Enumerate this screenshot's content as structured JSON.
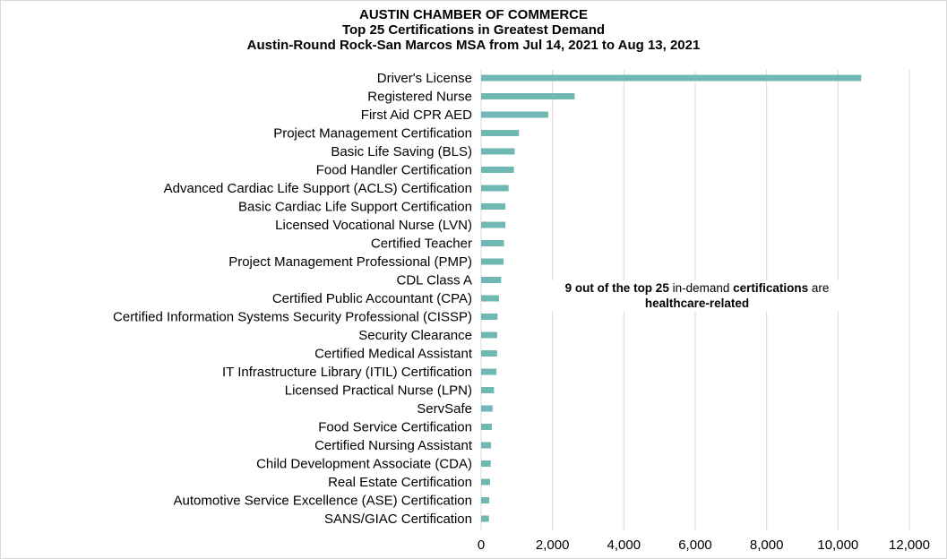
{
  "chart_data": {
    "type": "bar",
    "orientation": "horizontal",
    "title": "AUSTIN CHAMBER OF COMMERCE",
    "subtitle": "Top 25 Certifications in Greatest Demand",
    "subtitle2": "Austin-Round Rock-San Marcos MSA from Jul 14, 2021 to Aug 13, 2021",
    "categories": [
      "Driver's License",
      "Registered Nurse",
      "First Aid CPR AED",
      "Project Management Certification",
      "Basic Life Saving (BLS)",
      "Food Handler Certification",
      "Advanced Cardiac Life Support (ACLS) Certification",
      "Basic Cardiac Life Support Certification",
      "Licensed Vocational Nurse (LVN)",
      "Certified Teacher",
      "Project Management Professional (PMP)",
      "CDL Class A",
      "Certified Public Accountant (CPA)",
      "Certified Information Systems Security Professional (CISSP)",
      "Security Clearance",
      "Certified Medical Assistant",
      "IT Infrastructure Library (ITIL) Certification",
      "Licensed Practical Nurse (LPN)",
      "ServSafe",
      "Food Service Certification",
      "Certified Nursing Assistant",
      "Child Development Associate (CDA)",
      "Real Estate Certification",
      "Automotive Service Excellence (ASE) Certification",
      "SANS/GIAC Certification"
    ],
    "values": [
      10650,
      2620,
      1880,
      1060,
      940,
      920,
      770,
      680,
      680,
      640,
      630,
      560,
      500,
      460,
      450,
      450,
      430,
      360,
      320,
      300,
      280,
      270,
      250,
      230,
      220
    ],
    "xlim": [
      0,
      12000
    ],
    "xticks": [
      0,
      2000,
      4000,
      6000,
      8000,
      10000,
      12000
    ],
    "xtick_labels": [
      "0",
      "2,000",
      "4,000",
      "6,000",
      "8,000",
      "10,000",
      "12,000"
    ],
    "bar_color": "#6fb8b4",
    "grid_color": "#d9d9d9",
    "grid": "vertical",
    "legend": "none",
    "annotation": {
      "line1_parts": [
        {
          "text": "9 out of the top 25",
          "bold": true
        },
        {
          "text": " in-demand ",
          "bold": false
        },
        {
          "text": "certifications",
          "bold": true
        },
        {
          "text": " are",
          "bold": false
        }
      ],
      "line2": "healthcare-related"
    }
  }
}
